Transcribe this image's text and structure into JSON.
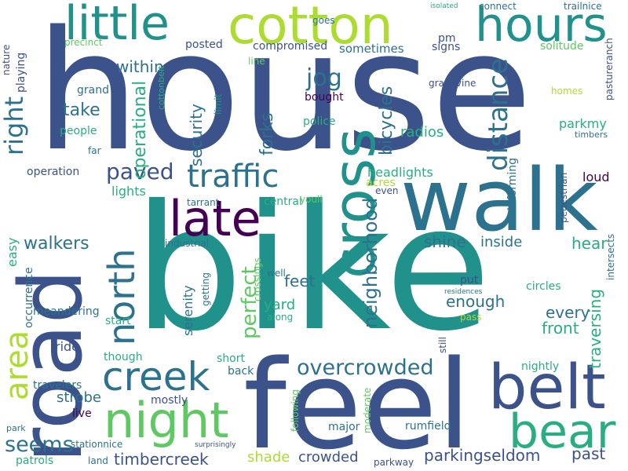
{
  "word_cloud": {
    "palette": [
      "#3b528b",
      "#2c728e",
      "#21918c",
      "#28ae80",
      "#5ec962",
      "#addc30",
      "#fde725",
      "#440154"
    ],
    "words": [
      {
        "text": "house",
        "color": "#3b528b"
      },
      {
        "text": "bike",
        "color": "#21918c"
      },
      {
        "text": "feel",
        "color": "#3b528b"
      },
      {
        "text": "walk",
        "color": "#2c728e"
      },
      {
        "text": "road",
        "color": "#3b528b"
      },
      {
        "text": "cotton",
        "color": "#addc30"
      },
      {
        "text": "little",
        "color": "#21918c"
      },
      {
        "text": "hours",
        "color": "#21918c"
      },
      {
        "text": "cross",
        "color": "#21918c"
      },
      {
        "text": "belt",
        "color": "#3b528b"
      },
      {
        "text": "late",
        "color": "#440154"
      },
      {
        "text": "night",
        "color": "#5ec962"
      },
      {
        "text": "bear",
        "color": "#28ae80"
      },
      {
        "text": "traffic",
        "color": "#2c728e"
      },
      {
        "text": "creek",
        "color": "#2c728e"
      },
      {
        "text": "north",
        "color": "#2c728e"
      },
      {
        "text": "area",
        "color": "#addc30"
      },
      {
        "text": "right",
        "color": "#2c728e"
      },
      {
        "text": "distance",
        "color": "#2c728e"
      },
      {
        "text": "overcrowded",
        "color": "#2c728e"
      },
      {
        "text": "perfect",
        "color": "#5ec962"
      },
      {
        "text": "paved",
        "color": "#3b528b"
      },
      {
        "text": "jog",
        "color": "#2c728e"
      },
      {
        "text": "seems",
        "color": "#2c728e"
      },
      {
        "text": "neighborhood",
        "color": "#2c728e"
      },
      {
        "text": "bicycles",
        "color": "#2c728e"
      },
      {
        "text": "within",
        "color": "#2c728e"
      },
      {
        "text": "take",
        "color": "#2c728e"
      },
      {
        "text": "operational",
        "color": "#28ae80"
      },
      {
        "text": "security",
        "color": "#2c728e"
      },
      {
        "text": "forks",
        "color": "#2c728e"
      },
      {
        "text": "walkers",
        "color": "#2c728e"
      },
      {
        "text": "feet",
        "color": "#2c728e"
      },
      {
        "text": "shine",
        "color": "#2c728e"
      },
      {
        "text": "inside",
        "color": "#2c728e"
      },
      {
        "text": "hear",
        "color": "#28ae80"
      },
      {
        "text": "traversing",
        "color": "#28ae80"
      },
      {
        "text": "every",
        "color": "#2c728e"
      },
      {
        "text": "front",
        "color": "#28ae80"
      },
      {
        "text": "enough",
        "color": "#2c728e"
      },
      {
        "text": "headlights",
        "color": "#28ae80"
      },
      {
        "text": "radios",
        "color": "#28ae80"
      },
      {
        "text": "parkmy",
        "color": "#28ae80"
      },
      {
        "text": "timbercreek",
        "color": "#3b528b"
      },
      {
        "text": "parkingseldom",
        "color": "#3b528b"
      },
      {
        "text": "past",
        "color": "#3b528b"
      },
      {
        "text": "crowded",
        "color": "#3b528b"
      },
      {
        "text": "shade",
        "color": "#addc30"
      },
      {
        "text": "strobe",
        "color": "#2c728e"
      },
      {
        "text": "yard",
        "color": "#28ae80"
      },
      {
        "text": "loud",
        "color": "#440154"
      },
      {
        "text": "serenity",
        "color": "#2c728e"
      },
      {
        "text": "lights",
        "color": "#28ae80"
      },
      {
        "text": "easy",
        "color": "#28ae80"
      },
      {
        "text": "nightly",
        "color": "#28ae80"
      },
      {
        "text": "sometimes",
        "color": "#2c728e"
      },
      {
        "text": "compromised",
        "color": "#3b528b"
      },
      {
        "text": "posted",
        "color": "#3b528b"
      },
      {
        "text": "bought",
        "color": "#440154"
      },
      {
        "text": "police",
        "color": "#28ae80"
      },
      {
        "text": "pm",
        "color": "#3b528b"
      },
      {
        "text": "signs",
        "color": "#3b528b"
      },
      {
        "text": "solitude",
        "color": "#5ec962"
      },
      {
        "text": "grapevine",
        "color": "#3b528b"
      },
      {
        "text": "homes",
        "color": "#addc30"
      },
      {
        "text": "timbers",
        "color": "#2c728e"
      },
      {
        "text": "goes",
        "color": "#2c728e"
      },
      {
        "text": "connect",
        "color": "#2c728e"
      },
      {
        "text": "trailnice",
        "color": "#2c728e"
      },
      {
        "text": "isolated",
        "color": "#28ae80"
      },
      {
        "text": "nature",
        "color": "#3b528b"
      },
      {
        "text": "playing",
        "color": "#3b528b"
      },
      {
        "text": "precinct",
        "color": "#5ec962"
      },
      {
        "text": "cottonbelt",
        "color": "#28ae80"
      },
      {
        "text": "line",
        "color": "#5ec962"
      },
      {
        "text": "limit",
        "color": "#21918c"
      },
      {
        "text": "grand",
        "color": "#2c728e"
      },
      {
        "text": "people",
        "color": "#28ae80"
      },
      {
        "text": "far",
        "color": "#2c728e"
      },
      {
        "text": "operation",
        "color": "#3b528b"
      },
      {
        "text": "tarrant",
        "color": "#2c728e"
      },
      {
        "text": "central",
        "color": "#28ae80"
      },
      {
        "text": "youll",
        "color": "#5ec962"
      },
      {
        "text": "acres",
        "color": "#addc30"
      },
      {
        "text": "even",
        "color": "#3b528b"
      },
      {
        "text": "informing",
        "color": "#2c728e"
      },
      {
        "text": "pedestrian",
        "color": "#3b528b"
      },
      {
        "text": "intersects",
        "color": "#2c728e"
      },
      {
        "text": "pastureranch",
        "color": "#3b528b"
      },
      {
        "text": "industrial",
        "color": "#2c728e"
      },
      {
        "text": "crossings",
        "color": "#5ec962"
      },
      {
        "text": "well",
        "color": "#2c728e"
      },
      {
        "text": "getting",
        "color": "#2c728e"
      },
      {
        "text": "along",
        "color": "#28ae80"
      },
      {
        "text": "residences",
        "color": "#2c728e"
      },
      {
        "text": "put",
        "color": "#3b528b"
      },
      {
        "text": "circles",
        "color": "#28ae80"
      },
      {
        "text": "pass",
        "color": "#addc30"
      },
      {
        "text": "still",
        "color": "#3b528b"
      },
      {
        "text": "occurrence",
        "color": "#2c728e"
      },
      {
        "text": "meandering",
        "color": "#2c728e"
      },
      {
        "text": "ride",
        "color": "#3b528b"
      },
      {
        "text": "start",
        "color": "#28ae80"
      },
      {
        "text": "though",
        "color": "#28ae80"
      },
      {
        "text": "short",
        "color": "#28ae80"
      },
      {
        "text": "back",
        "color": "#2c728e"
      },
      {
        "text": "travelers",
        "color": "#2c728e"
      },
      {
        "text": "mostly",
        "color": "#3b528b"
      },
      {
        "text": "live",
        "color": "#440154"
      },
      {
        "text": "following",
        "color": "#5ec962"
      },
      {
        "text": "moderate",
        "color": "#5ec962"
      },
      {
        "text": "major",
        "color": "#2c728e"
      },
      {
        "text": "rumfield",
        "color": "#2c728e"
      },
      {
        "text": "park",
        "color": "#2c728e"
      },
      {
        "text": "stationnice",
        "color": "#2c728e"
      },
      {
        "text": "land",
        "color": "#2c728e"
      },
      {
        "text": "patrols",
        "color": "#28ae80"
      },
      {
        "text": "surprisingly",
        "color": "#3b528b"
      },
      {
        "text": "parkway",
        "color": "#3b528b"
      }
    ]
  }
}
